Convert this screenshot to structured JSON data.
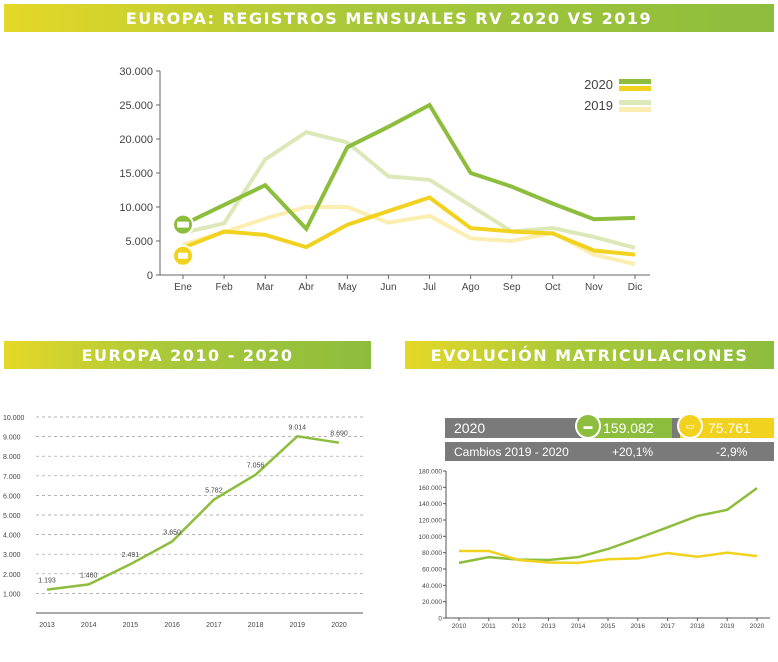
{
  "banners": {
    "top": "EUROPA: REGISTROS MENSUALES RV 2020 VS 2019",
    "mid": "EUROPA 2010 - 2020",
    "right": "EVOLUCIÓN MATRICULACIONES"
  },
  "colors": {
    "green": "#8dbd3c",
    "yellow": "#f0d21f",
    "green_light": "#dde8b8",
    "yellow_light": "#fbeeb0",
    "grey_panel": "#7a7a7a"
  },
  "icons": {
    "motorhome": "motorhome-icon",
    "caravan": "caravan-icon"
  },
  "stats_panel": {
    "year_label": "2020",
    "motorhome_total": "159.082",
    "caravan_total": "75.761",
    "changes_label": "Cambios 2019 - 2020",
    "motorhome_change": "+20,1%",
    "caravan_change": "-2,9%"
  },
  "chart_data": [
    {
      "type": "line",
      "title": "EUROPA: REGISTROS MENSUALES RV 2020 VS 2019",
      "categories": [
        "Ene",
        "Feb",
        "Mar",
        "Abr",
        "May",
        "Jun",
        "Jul",
        "Ago",
        "Sep",
        "Oct",
        "Nov",
        "Dic"
      ],
      "ylim": [
        0,
        30000
      ],
      "yticks": [
        "0",
        "5.000",
        "10.000",
        "15.000",
        "20.000",
        "25.000",
        "30.000"
      ],
      "legend_position": "top-right",
      "legend": [
        "2020",
        "2019"
      ],
      "series": [
        {
          "name": "2020",
          "kind": "motorhome",
          "color": "#8dbd3c",
          "values": [
            7400,
            10300,
            13200,
            6800,
            18800,
            21800,
            25000,
            15000,
            13000,
            10500,
            8200,
            8400
          ]
        },
        {
          "name": "2020",
          "kind": "caravan",
          "color": "#f0d21f",
          "values": [
            4000,
            6400,
            5900,
            4100,
            7400,
            9400,
            11400,
            6900,
            6400,
            6100,
            3600,
            3000
          ]
        },
        {
          "name": "2019",
          "kind": "motorhome",
          "color": "#dde8b8",
          "values": [
            6200,
            7600,
            17000,
            21000,
            19500,
            14500,
            14000,
            10200,
            6400,
            6900,
            5600,
            4000
          ]
        },
        {
          "name": "2019",
          "kind": "caravan",
          "color": "#fbeeb0",
          "values": [
            4500,
            6300,
            8300,
            10000,
            10000,
            7700,
            8700,
            5400,
            5000,
            6200,
            3000,
            1600
          ]
        }
      ],
      "grid": false
    },
    {
      "type": "line",
      "title": "EUROPA 2010 - 2020",
      "x": [
        "2013",
        "2014",
        "2015",
        "2016",
        "2017",
        "2018",
        "2019",
        "2020"
      ],
      "values": [
        1193,
        1460,
        2491,
        3650,
        5782,
        7056,
        9014,
        8690
      ],
      "data_labels": [
        "1.193",
        "1.460",
        "2.491",
        "3.650",
        "5.782",
        "7.056",
        "9.014",
        "8.690"
      ],
      "ylim": [
        0,
        10000
      ],
      "yticks": [
        "1.000",
        "2.000",
        "3.000",
        "4.000",
        "5.000",
        "6.000",
        "7.000",
        "8.000",
        "9.000",
        "10.000"
      ],
      "grid": true,
      "color": "#8dbd3c"
    },
    {
      "type": "line",
      "title": "EVOLUCIÓN MATRICULACIONES",
      "x": [
        "2010",
        "2011",
        "2012",
        "2013",
        "2014",
        "2015",
        "2016",
        "2017",
        "2018",
        "2019",
        "2020"
      ],
      "ylim": [
        0,
        180000
      ],
      "yticks": [
        "0",
        "20.000",
        "40.000",
        "60.000",
        "80.000",
        "100.000",
        "120.000",
        "140.000",
        "160.000",
        "180.000"
      ],
      "grid": false,
      "series": [
        {
          "kind": "motorhome",
          "color": "#8dbd3c",
          "values": [
            67500,
            74500,
            71500,
            71000,
            74500,
            84500,
            97500,
            111000,
            125000,
            132500,
            159082
          ]
        },
        {
          "kind": "caravan",
          "color": "#f0d21f",
          "values": [
            82000,
            82000,
            71000,
            68000,
            67500,
            72000,
            73000,
            79500,
            75000,
            80000,
            75761
          ]
        }
      ]
    }
  ]
}
